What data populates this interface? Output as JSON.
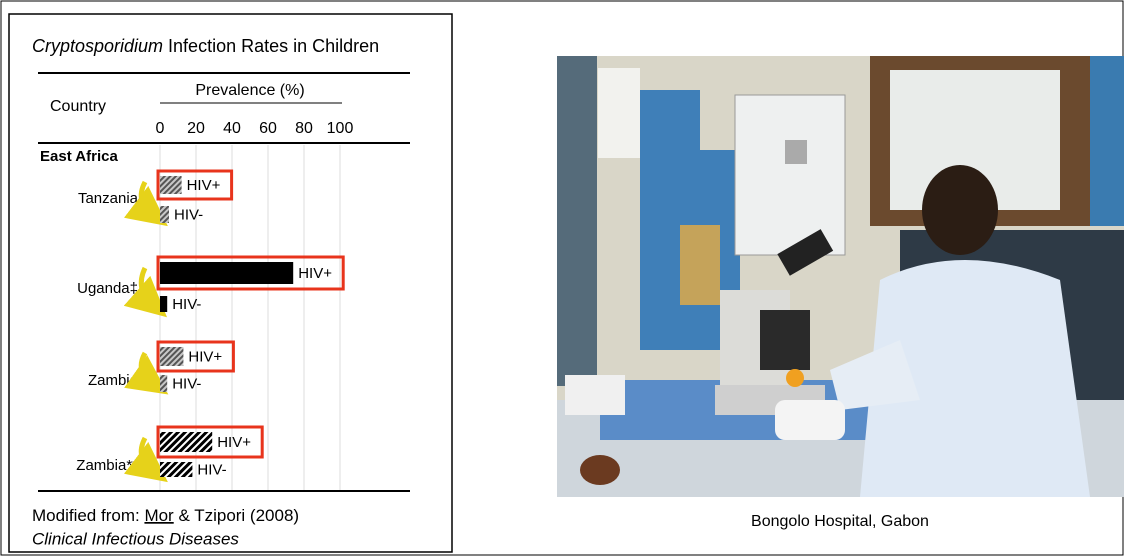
{
  "chart_data": {
    "type": "bar",
    "orientation": "horizontal",
    "title": [
      "Cryptosporidium",
      " Infection Rates in Children"
    ],
    "x_label": "Prevalence (%)",
    "y_label": "Country",
    "group": "East Africa",
    "categories": [
      "Tanzania",
      "Uganda‡",
      "Zambia",
      "Zambia**"
    ],
    "series": [
      {
        "name": "HIV+",
        "values": [
          12,
          74,
          13,
          29
        ]
      },
      {
        "name": "HIV-",
        "values": [
          5,
          4,
          4,
          18
        ]
      }
    ],
    "bar_styles": [
      "gray-hatch",
      "solid",
      "gray-hatch",
      "black-hatch"
    ],
    "highlight_color": "#e8341c",
    "xlim": [
      0,
      100
    ],
    "xticks": [
      0,
      20,
      40,
      60,
      80,
      100
    ],
    "grid": true
  },
  "source": {
    "prefix": "Modified from: ",
    "authors": "Mor",
    "rest": " & Tzipori (2008)",
    "journal": "Clinical Infectious Diseases"
  },
  "photo_caption": "Bongolo Hospital, Gabon"
}
